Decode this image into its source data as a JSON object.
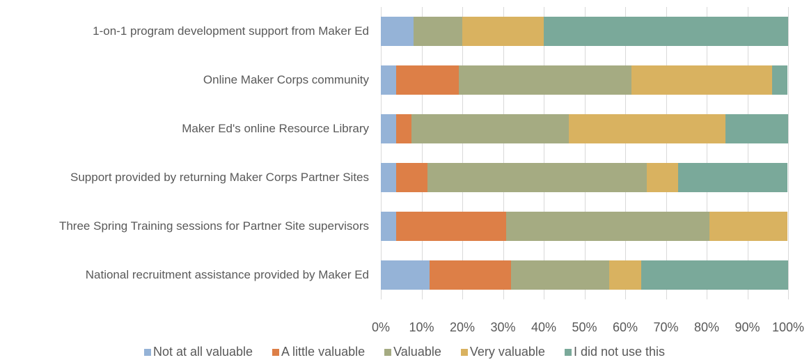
{
  "chart_data": {
    "type": "stacked_bar_horizontal",
    "categories": [
      "1-on-1 program development support from Maker Ed",
      "Online Maker Corps community",
      "Maker Ed's online Resource Library",
      "Support provided by returning Maker Corps Partner Sites",
      "Three Spring Training sessions for Partner Site supervisors",
      "National recruitment assistance provided by Maker Ed"
    ],
    "series": [
      {
        "name": "Not at all valuable",
        "color": "#95b3d7",
        "values": [
          8,
          3.8,
          3.8,
          3.8,
          3.8,
          12
        ]
      },
      {
        "name": "A little valuable",
        "color": "#dd7f47",
        "values": [
          0,
          15.4,
          3.8,
          7.7,
          26.9,
          20
        ]
      },
      {
        "name": "Valuable",
        "color": "#a5ab82",
        "values": [
          12,
          42.3,
          38.5,
          53.8,
          50,
          24
        ]
      },
      {
        "name": "Very valuable",
        "color": "#d9b260",
        "values": [
          20,
          34.6,
          38.5,
          7.7,
          19.2,
          8
        ]
      },
      {
        "name": "I did not use this",
        "color": "#7aa99a",
        "values": [
          60,
          3.8,
          15.4,
          26.9,
          0,
          36
        ]
      }
    ],
    "xlim": [
      0,
      100
    ],
    "xticks": [
      {
        "value": 0,
        "label": "0%"
      },
      {
        "value": 10,
        "label": "10%"
      },
      {
        "value": 20,
        "label": "20%"
      },
      {
        "value": 30,
        "label": "30%"
      },
      {
        "value": 40,
        "label": "40%"
      },
      {
        "value": 50,
        "label": "50%"
      },
      {
        "value": 60,
        "label": "60%"
      },
      {
        "value": 70,
        "label": "70%"
      },
      {
        "value": 80,
        "label": "80%"
      },
      {
        "value": 90,
        "label": "90%"
      },
      {
        "value": 100,
        "label": "100%"
      }
    ],
    "grid": true,
    "legend": "bottom"
  }
}
